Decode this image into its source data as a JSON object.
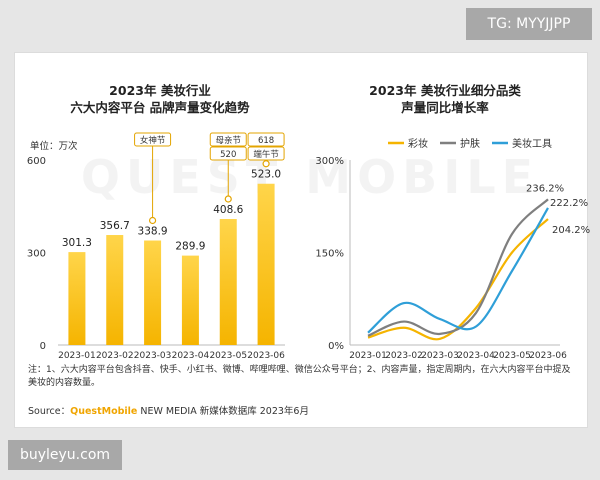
{
  "watermarks": {
    "top_right": "TG: MYYJJPP",
    "bottom_left": "buyleyu.com",
    "background": "QUEST MOBILE"
  },
  "chart_data": [
    {
      "type": "bar",
      "title_lines": [
        "2023年 美妆行业",
        "六大内容平台 品牌声量变化趋势"
      ],
      "unit": "单位：万次",
      "categories": [
        "2023-01",
        "2023-02",
        "2023-03",
        "2023-04",
        "2023-05",
        "2023-06"
      ],
      "values": [
        301.3,
        356.7,
        338.9,
        289.9,
        408.6,
        523.0
      ],
      "value_labels": [
        "301.3",
        "356.7",
        "338.9",
        "289.9",
        "408.6",
        "523.0"
      ],
      "yticks": [
        "0",
        "300",
        "600"
      ],
      "ylim": [
        0,
        600
      ],
      "annotations": [
        {
          "category_index": 2,
          "labels": [
            "女神节"
          ]
        },
        {
          "category_index": 4,
          "labels": [
            "母亲节",
            "520"
          ]
        },
        {
          "category_index": 5,
          "labels": [
            "618",
            "端午节"
          ]
        }
      ],
      "colors": {
        "bar_top": "#ffd54a",
        "bar_bottom": "#f5b400",
        "callout": "#e3a400"
      }
    },
    {
      "type": "line",
      "title_lines": [
        "2023年 美妆行业细分品类",
        "声量同比增长率"
      ],
      "categories": [
        "2023-01",
        "2023-02",
        "2023-03",
        "2023-04",
        "2023-05",
        "2023-06"
      ],
      "yticks": [
        "0%",
        "150%",
        "300%"
      ],
      "ylim": [
        0,
        300
      ],
      "series": [
        {
          "name": "彩妆",
          "color": "#f5b400",
          "values": [
            12,
            28,
            10,
            60,
            150,
            204.2
          ],
          "end_label": "204.2%"
        },
        {
          "name": "护肤",
          "color": "#7f7f7f",
          "values": [
            15,
            38,
            18,
            52,
            180,
            236.2
          ],
          "end_label": "236.2%"
        },
        {
          "name": "美妆工具",
          "color": "#2f9fd8",
          "values": [
            20,
            68,
            42,
            30,
            120,
            222.2
          ],
          "end_label": "222.2%"
        }
      ]
    }
  ],
  "footnote": "注：1、六大内容平台包含抖音、快手、小红书、微博、哔哩哔哩、微信公众号平台；2、内容声量，指定周期内，在六大内容平台中提及美妆的内容数量。",
  "source": {
    "prefix": "Source：",
    "brand": "QuestMobile",
    "rest": " NEW MEDIA 新媒体数据库 2023年6月"
  }
}
